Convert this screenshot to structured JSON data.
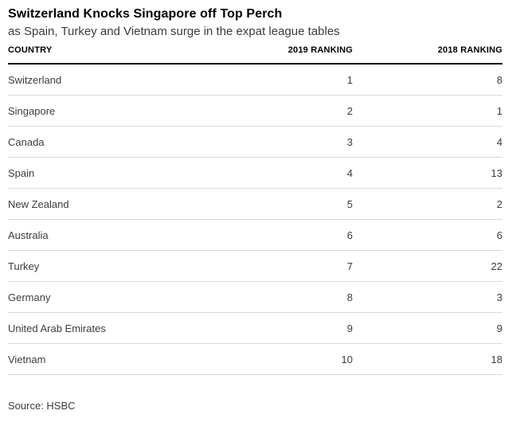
{
  "chart_data": {
    "type": "table",
    "title": "Switzerland Knocks Singapore off Top Perch",
    "subtitle": "as Spain, Turkey and Vietnam surge in the expat league tables",
    "columns": [
      "COUNTRY",
      "2019 RANKING",
      "2018 RANKING"
    ],
    "rows": [
      [
        "Switzerland",
        1,
        8
      ],
      [
        "Singapore",
        2,
        1
      ],
      [
        "Canada",
        3,
        4
      ],
      [
        "Spain",
        4,
        13
      ],
      [
        "New Zealand",
        5,
        2
      ],
      [
        "Australia",
        6,
        6
      ],
      [
        "Turkey",
        7,
        22
      ],
      [
        "Germany",
        8,
        3
      ],
      [
        "United Arab Emirates",
        9,
        9
      ],
      [
        "Vietnam",
        10,
        18
      ]
    ],
    "source": "Source: HSBC"
  },
  "colors": {
    "background": "#ffffff",
    "text_primary": "#000000",
    "text_secondary": "#3c3c3c",
    "header_rule": "#000000",
    "row_separator": "#d9d9d9"
  }
}
